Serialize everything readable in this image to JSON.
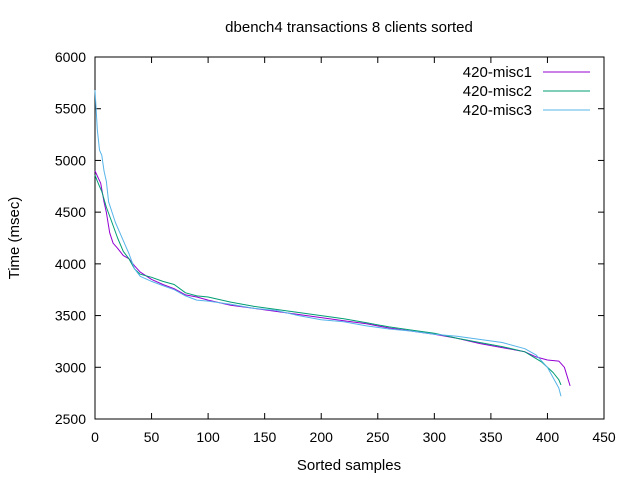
{
  "chart_data": {
    "type": "line",
    "title": "dbench4 transactions 8 clients sorted",
    "xlabel": "Sorted samples",
    "ylabel": "Time (msec)",
    "xlim": [
      0,
      450
    ],
    "ylim": [
      2500,
      6000
    ],
    "x_ticks": [
      0,
      50,
      100,
      150,
      200,
      250,
      300,
      350,
      400,
      450
    ],
    "y_ticks": [
      2500,
      3000,
      3500,
      4000,
      4500,
      5000,
      5500,
      6000
    ],
    "grid": false,
    "legend_position": "top-right",
    "series": [
      {
        "name": "420-misc1",
        "color": "#9400d3",
        "points": [
          [
            0,
            4900
          ],
          [
            2,
            4850
          ],
          [
            5,
            4780
          ],
          [
            8,
            4600
          ],
          [
            10,
            4500
          ],
          [
            13,
            4300
          ],
          [
            16,
            4200
          ],
          [
            20,
            4150
          ],
          [
            25,
            4080
          ],
          [
            30,
            4050
          ],
          [
            35,
            3980
          ],
          [
            40,
            3920
          ],
          [
            50,
            3850
          ],
          [
            60,
            3800
          ],
          [
            70,
            3760
          ],
          [
            80,
            3700
          ],
          [
            90,
            3680
          ],
          [
            100,
            3650
          ],
          [
            120,
            3600
          ],
          [
            140,
            3570
          ],
          [
            160,
            3540
          ],
          [
            180,
            3510
          ],
          [
            200,
            3480
          ],
          [
            220,
            3450
          ],
          [
            240,
            3420
          ],
          [
            260,
            3380
          ],
          [
            280,
            3350
          ],
          [
            300,
            3320
          ],
          [
            320,
            3280
          ],
          [
            340,
            3230
          ],
          [
            360,
            3190
          ],
          [
            380,
            3150
          ],
          [
            390,
            3100
          ],
          [
            400,
            3070
          ],
          [
            410,
            3060
          ],
          [
            415,
            3000
          ],
          [
            420,
            2820
          ]
        ]
      },
      {
        "name": "420-misc2",
        "color": "#009e73",
        "points": [
          [
            0,
            4860
          ],
          [
            2,
            4800
          ],
          [
            4,
            4750
          ],
          [
            6,
            4700
          ],
          [
            10,
            4550
          ],
          [
            15,
            4400
          ],
          [
            20,
            4250
          ],
          [
            25,
            4120
          ],
          [
            30,
            4050
          ],
          [
            35,
            3950
          ],
          [
            40,
            3900
          ],
          [
            50,
            3870
          ],
          [
            60,
            3830
          ],
          [
            70,
            3800
          ],
          [
            80,
            3720
          ],
          [
            90,
            3690
          ],
          [
            100,
            3680
          ],
          [
            120,
            3630
          ],
          [
            140,
            3590
          ],
          [
            160,
            3560
          ],
          [
            180,
            3530
          ],
          [
            200,
            3500
          ],
          [
            220,
            3470
          ],
          [
            240,
            3430
          ],
          [
            260,
            3390
          ],
          [
            280,
            3360
          ],
          [
            300,
            3330
          ],
          [
            320,
            3280
          ],
          [
            340,
            3240
          ],
          [
            360,
            3200
          ],
          [
            380,
            3150
          ],
          [
            395,
            3050
          ],
          [
            400,
            3000
          ],
          [
            405,
            2950
          ],
          [
            410,
            2880
          ],
          [
            412,
            2830
          ]
        ]
      },
      {
        "name": "420-misc3",
        "color": "#56b4e9",
        "points": [
          [
            0,
            5680
          ],
          [
            1,
            5500
          ],
          [
            2,
            5300
          ],
          [
            4,
            5100
          ],
          [
            6,
            5050
          ],
          [
            8,
            4900
          ],
          [
            10,
            4800
          ],
          [
            12,
            4600
          ],
          [
            15,
            4500
          ],
          [
            18,
            4400
          ],
          [
            22,
            4300
          ],
          [
            26,
            4200
          ],
          [
            30,
            4100
          ],
          [
            35,
            3950
          ],
          [
            40,
            3880
          ],
          [
            50,
            3830
          ],
          [
            60,
            3790
          ],
          [
            70,
            3750
          ],
          [
            80,
            3690
          ],
          [
            90,
            3650
          ],
          [
            100,
            3640
          ],
          [
            120,
            3610
          ],
          [
            140,
            3570
          ],
          [
            160,
            3550
          ],
          [
            180,
            3500
          ],
          [
            200,
            3460
          ],
          [
            220,
            3440
          ],
          [
            240,
            3400
          ],
          [
            260,
            3370
          ],
          [
            280,
            3350
          ],
          [
            300,
            3320
          ],
          [
            320,
            3300
          ],
          [
            340,
            3270
          ],
          [
            360,
            3240
          ],
          [
            380,
            3180
          ],
          [
            390,
            3120
          ],
          [
            400,
            3000
          ],
          [
            405,
            2900
          ],
          [
            410,
            2800
          ],
          [
            412,
            2720
          ]
        ]
      }
    ]
  }
}
